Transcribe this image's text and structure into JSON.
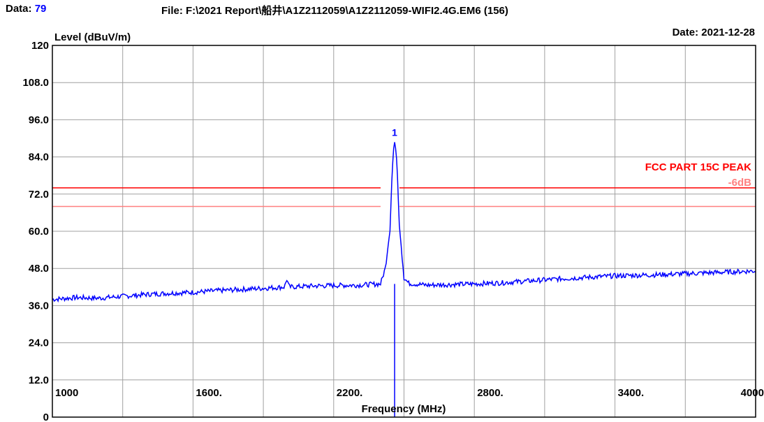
{
  "header": {
    "data_label": "Data:",
    "data_value": "79",
    "file_text": "File: F:\\2021 Report\\船井\\A1Z2112059\\A1Z2112059-WIFI2.4G.EM6  (156)",
    "date_text": "Date: 2021-12-28"
  },
  "colors": {
    "trace": "#0000ff",
    "limit": "#ff0000",
    "limit_offset": "#ff8080",
    "grid": "#a0a0a0",
    "data_value": "#0000ff"
  },
  "chart_data": {
    "type": "line",
    "title": "",
    "ylabel": "Level (dBuV/m)",
    "xlabel": "Frequency (MHz)",
    "xlim": [
      1000,
      4000
    ],
    "ylim": [
      0,
      120
    ],
    "x_tick_labels": [
      "1000",
      "1600.",
      "2200.",
      "2800.",
      "3400.",
      "4000"
    ],
    "x_ticks": [
      1000,
      1600,
      2200,
      2800,
      3400,
      4000
    ],
    "y_tick_labels": [
      "0",
      "12.0",
      "24.0",
      "36.0",
      "48.0",
      "60.0",
      "72.0",
      "84.0",
      "96.0",
      "108.0",
      "120"
    ],
    "y_ticks": [
      0,
      12,
      24,
      36,
      48,
      60,
      72,
      84,
      96,
      108,
      120
    ],
    "grid": true,
    "limit_lines": [
      {
        "name": "FCC PART 15C PEAK",
        "value": 74,
        "label_visible": true
      },
      {
        "name": "-6dB",
        "value": 68,
        "label_visible": true
      }
    ],
    "marker": {
      "label": "1",
      "x": 2460,
      "y": 89
    },
    "series": [
      {
        "x": [
          1000,
          1100,
          1200,
          1300,
          1400,
          1500,
          1600,
          1700,
          1800,
          1900,
          1990,
          2000,
          2010,
          2100,
          2200,
          2300,
          2400,
          2420,
          2440,
          2450,
          2458,
          2462,
          2470,
          2480,
          2500,
          2520,
          2600,
          2700,
          2800,
          2900,
          3000,
          3100,
          3200,
          3300,
          3400,
          3500,
          3600,
          3700,
          3800,
          3900,
          4000
        ],
        "values": [
          38,
          38.6,
          38.4,
          39,
          39.6,
          40,
          40.3,
          40.8,
          41.2,
          41.6,
          42,
          44.5,
          42,
          42.3,
          42.5,
          42.6,
          43,
          48,
          60,
          80,
          89,
          88.5,
          82,
          62,
          45,
          43.2,
          42.6,
          42.8,
          43,
          43.3,
          43.8,
          44.3,
          44.8,
          45.2,
          45.6,
          45.8,
          46,
          46.3,
          46.6,
          46.9,
          47.2
        ]
      }
    ]
  }
}
